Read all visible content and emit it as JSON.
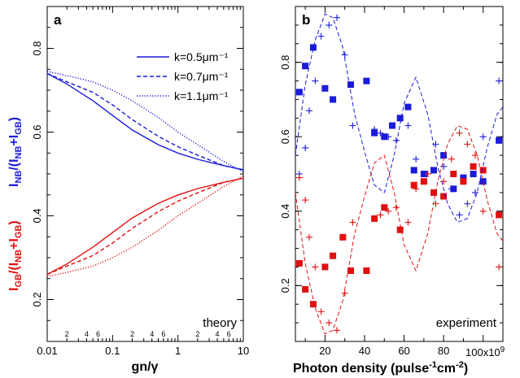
{
  "chart_data": [
    {
      "panel": "a",
      "type": "line",
      "annotation": "theory",
      "xlabel": "gn/γ",
      "ylabel_red": "I_GB/(I_NB+I_GB)",
      "ylabel_blue": "I_NB/(I_NB+I_GB)",
      "xscale": "log",
      "xlim": [
        0.01,
        10
      ],
      "ylim": [
        0.1,
        0.9
      ],
      "x_ticks": [
        "0.01",
        "0.1",
        "1",
        "10"
      ],
      "y_ticks": [
        "0.2",
        "0.4",
        "0.6",
        "0.8"
      ],
      "legend_position": "top-right",
      "legend": [
        "k=0.5μm⁻¹",
        "k=0.7μm⁻¹",
        "k=1.1μm⁻¹"
      ],
      "x": [
        0.01,
        0.02,
        0.05,
        0.1,
        0.2,
        0.5,
        1,
        2,
        5,
        10
      ],
      "series": [
        {
          "name": "k=0.5μm⁻¹",
          "style": "solid",
          "color": "#1a1adb",
          "values": [
            0.74,
            0.715,
            0.675,
            0.64,
            0.605,
            0.57,
            0.55,
            0.535,
            0.52,
            0.51
          ]
        },
        {
          "name": "k=0.5μm⁻¹",
          "style": "solid",
          "color": "#e01010",
          "values": [
            0.26,
            0.285,
            0.325,
            0.36,
            0.395,
            0.43,
            0.45,
            0.465,
            0.48,
            0.49
          ]
        },
        {
          "name": "k=0.7μm⁻¹",
          "style": "dashed",
          "color": "#1a1adb",
          "values": [
            0.74,
            0.72,
            0.695,
            0.665,
            0.63,
            0.59,
            0.565,
            0.545,
            0.52,
            0.51
          ]
        },
        {
          "name": "k=0.7μm⁻¹",
          "style": "dashed",
          "color": "#e01010",
          "values": [
            0.26,
            0.28,
            0.305,
            0.335,
            0.37,
            0.41,
            0.435,
            0.455,
            0.48,
            0.49
          ]
        },
        {
          "name": "k=1.1μm⁻¹",
          "style": "dotted",
          "color": "#1a1adb",
          "values": [
            0.745,
            0.735,
            0.72,
            0.7,
            0.675,
            0.635,
            0.6,
            0.57,
            0.53,
            0.505
          ]
        },
        {
          "name": "k=1.1μm⁻¹",
          "style": "dotted",
          "color": "#e01010",
          "values": [
            0.255,
            0.265,
            0.28,
            0.3,
            0.325,
            0.365,
            0.4,
            0.43,
            0.47,
            0.495
          ]
        }
      ]
    },
    {
      "panel": "b",
      "type": "scatter",
      "annotation": "experiment",
      "xlabel": "Photon density (pulse⁻¹cm⁻²)",
      "x_multiplier": "×10⁹",
      "xlim": [
        5,
        110
      ],
      "ylim": [
        0.05,
        0.95
      ],
      "x_ticks": [
        "20",
        "40",
        "60",
        "80",
        "100"
      ],
      "y_ticks": [
        "0.2",
        "0.4",
        "0.6",
        "0.8"
      ],
      "series": [
        {
          "name": "",
          "marker": "square",
          "color": "#1a1adb",
          "x": [
            7,
            10,
            14,
            20,
            24,
            33,
            41,
            45,
            50,
            54,
            58,
            62,
            65,
            70,
            75,
            80,
            85,
            90,
            95,
            100,
            108
          ],
          "y": [
            0.72,
            0.79,
            0.84,
            0.73,
            0.7,
            0.74,
            0.75,
            0.61,
            0.6,
            0.63,
            0.65,
            0.68,
            0.51,
            0.5,
            0.51,
            0.55,
            0.46,
            0.49,
            0.5,
            0.48,
            0.59
          ]
        },
        {
          "name": "",
          "marker": "square",
          "color": "#e01010",
          "x": [
            7,
            10,
            14,
            20,
            24,
            29,
            33,
            41,
            45,
            50,
            58,
            65,
            70,
            75,
            80,
            85,
            90,
            95,
            100,
            108
          ],
          "y": [
            0.26,
            0.19,
            0.15,
            0.25,
            0.28,
            0.33,
            0.24,
            0.24,
            0.38,
            0.41,
            0.35,
            0.47,
            0.48,
            0.45,
            0.44,
            0.5,
            0.48,
            0.52,
            0.51,
            0.39
          ]
        },
        {
          "name": "",
          "marker": "cross",
          "color": "#1a1adb",
          "x": [
            7,
            10,
            12,
            15,
            18,
            22,
            26,
            30,
            34,
            45,
            48,
            52,
            56,
            62,
            66,
            72,
            76,
            80,
            84,
            88,
            92,
            96,
            100,
            108
          ],
          "y": [
            0.5,
            0.57,
            0.67,
            0.75,
            0.87,
            0.9,
            0.92,
            0.82,
            0.63,
            0.62,
            0.61,
            0.6,
            0.59,
            0.63,
            0.54,
            0.5,
            0.58,
            0.52,
            0.46,
            0.39,
            0.42,
            0.45,
            0.6,
            0.75
          ]
        },
        {
          "name": "",
          "marker": "cross",
          "color": "#e01010",
          "x": [
            7,
            10,
            12,
            15,
            18,
            22,
            26,
            30,
            34,
            45,
            48,
            52,
            56,
            62,
            66,
            72,
            76,
            80,
            84,
            88,
            92,
            96,
            100,
            108
          ],
          "y": [
            0.49,
            0.43,
            0.33,
            0.25,
            0.13,
            0.1,
            0.08,
            0.18,
            0.37,
            0.38,
            0.39,
            0.4,
            0.41,
            0.37,
            0.46,
            0.5,
            0.42,
            0.48,
            0.54,
            0.61,
            0.58,
            0.55,
            0.4,
            0.25
          ]
        },
        {
          "name": "",
          "style": "dashed",
          "color": "#1a1adb",
          "x": [
            5,
            10,
            15,
            20,
            24,
            29,
            35,
            40,
            45,
            50,
            55,
            60,
            66,
            72,
            77,
            82,
            87,
            92,
            97,
            102,
            107,
            110
          ],
          "y": [
            0.55,
            0.74,
            0.86,
            0.93,
            0.92,
            0.84,
            0.66,
            0.56,
            0.47,
            0.45,
            0.55,
            0.69,
            0.76,
            0.66,
            0.52,
            0.42,
            0.37,
            0.38,
            0.45,
            0.57,
            0.66,
            0.68
          ]
        },
        {
          "name": "",
          "style": "dashed",
          "color": "#e01010",
          "x": [
            5,
            10,
            15,
            20,
            24,
            29,
            35,
            40,
            45,
            50,
            55,
            60,
            66,
            72,
            77,
            82,
            87,
            92,
            97,
            102,
            107,
            110
          ],
          "y": [
            0.45,
            0.26,
            0.14,
            0.07,
            0.08,
            0.16,
            0.34,
            0.44,
            0.53,
            0.55,
            0.45,
            0.31,
            0.24,
            0.34,
            0.48,
            0.58,
            0.63,
            0.62,
            0.55,
            0.43,
            0.34,
            0.32
          ]
        }
      ]
    }
  ]
}
